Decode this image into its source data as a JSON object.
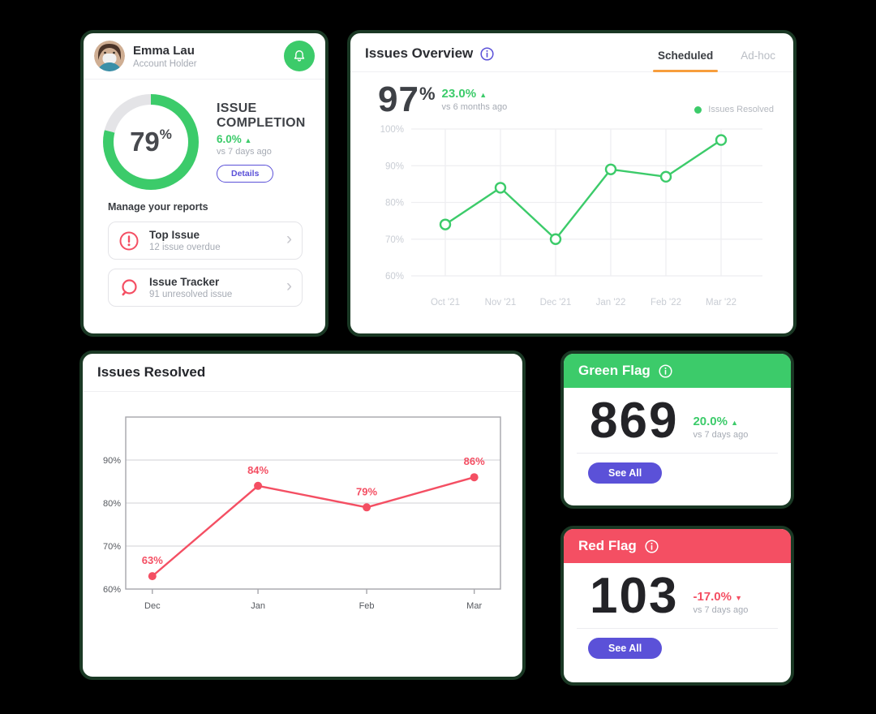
{
  "colors": {
    "green": "#3ccb6a",
    "red": "#f44f63",
    "purple": "#5b51d8",
    "orange": "#f79e3d",
    "card_border": "#1a3824",
    "background": "#000000",
    "donut_track": "#e4e4e7",
    "grid_light": "#eeeef1",
    "grid_dark": "#d9d9dd",
    "box_border": "#a6a6ab",
    "axis_light": "#c9cdd4",
    "axis_dark": "#55585e"
  },
  "icons": {
    "trend_up": "▲",
    "trend_down": "▼",
    "chevron_right": "›"
  },
  "profile_card": {
    "name": "Emma Lau",
    "role": "Account Holder",
    "donut": {
      "value": 79,
      "label": "79",
      "unit": "%"
    },
    "metric_title_line1": "ISSUE",
    "metric_title_line2": "COMPLETION",
    "delta": "6.0%",
    "trend": "up",
    "delta_caption": "vs 7 days ago",
    "details_label": "Details",
    "section_title": "Manage your reports",
    "items": [
      {
        "icon": "alert-circle",
        "title": "Top Issue",
        "subtitle": "12 issue overdue"
      },
      {
        "icon": "search",
        "title": "Issue Tracker",
        "subtitle": "91 unresolved issue"
      }
    ]
  },
  "overview_card": {
    "title": "Issues Overview",
    "tabs": [
      {
        "label": "Scheduled",
        "active": true
      },
      {
        "label": "Ad-hoc",
        "active": false
      }
    ],
    "kpi_value": "97",
    "kpi_unit": "%",
    "delta": "23.0%",
    "trend": "up",
    "delta_caption": "vs 6 months ago",
    "legend_label": "Issues Resolved",
    "chart_data": {
      "type": "line",
      "x": [
        "Oct '21",
        "Nov '21",
        "Dec '21",
        "Jan '22",
        "Feb '22",
        "Mar '22"
      ],
      "series": [
        {
          "name": "Issues Resolved",
          "values": [
            74,
            84,
            70,
            89,
            87,
            97
          ]
        }
      ],
      "ylim": [
        60,
        100
      ],
      "yticks": [
        100,
        90,
        80,
        70,
        60
      ],
      "grid": true,
      "marker": "open-circle",
      "legend_position": "top-right"
    }
  },
  "resolved_card": {
    "title": "Issues Resolved",
    "chart_data": {
      "type": "line",
      "x": [
        "Dec",
        "Jan",
        "Feb",
        "Mar"
      ],
      "values": [
        63,
        84,
        79,
        86
      ],
      "point_labels": [
        "63%",
        "84%",
        "79%",
        "86%"
      ],
      "ylim": [
        60,
        100
      ],
      "yticks": [
        90,
        80,
        70,
        60
      ],
      "grid": true,
      "marker": "filled-circle",
      "boxed": true
    }
  },
  "green_flag_card": {
    "title": "Green Flag",
    "value": "869",
    "delta": "20.0%",
    "trend": "up",
    "delta_caption": "vs 7 days ago",
    "button_label": "See All"
  },
  "red_flag_card": {
    "title": "Red Flag",
    "value": "103",
    "delta": "-17.0%",
    "trend": "down",
    "delta_caption": "vs 7 days ago",
    "button_label": "See All"
  }
}
